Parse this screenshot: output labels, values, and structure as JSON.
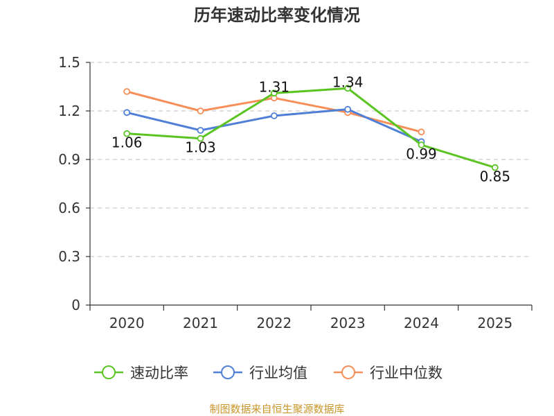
{
  "chart_data": {
    "type": "line",
    "title": "历年速动比率变化情况",
    "categories": [
      "2020",
      "2021",
      "2022",
      "2023",
      "2024",
      "2025"
    ],
    "y_ticks": [
      "0",
      "0.3",
      "0.6",
      "0.9",
      "1.2",
      "1.5"
    ],
    "ylim": [
      0,
      1.5
    ],
    "grid": true,
    "legend_position": "bottom",
    "series": [
      {
        "name": "速动比率",
        "color": "#5bc423",
        "values": [
          1.06,
          1.03,
          1.31,
          1.34,
          0.99,
          0.85
        ],
        "labels": [
          "1.06",
          "1.03",
          "1.31",
          "1.34",
          "0.99",
          "0.85"
        ]
      },
      {
        "name": "行业均值",
        "color": "#4f7fd6",
        "values": [
          1.19,
          1.08,
          1.17,
          1.21,
          1.01,
          null
        ]
      },
      {
        "name": "行业中位数",
        "color": "#f78e58",
        "values": [
          1.32,
          1.2,
          1.28,
          1.19,
          1.07,
          null
        ]
      }
    ],
    "source": "制图数据来自恒生聚源数据库"
  }
}
